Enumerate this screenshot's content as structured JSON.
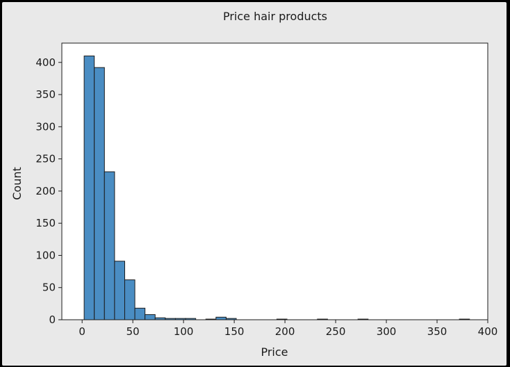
{
  "chart_data": {
    "type": "bar",
    "title": "Price hair products",
    "xlabel": "Price",
    "ylabel": "Count",
    "xlim": [
      -20,
      400
    ],
    "ylim": [
      0,
      430
    ],
    "xticks": [
      0,
      50,
      100,
      150,
      200,
      250,
      300,
      350,
      400
    ],
    "yticks": [
      0,
      50,
      100,
      150,
      200,
      250,
      300,
      350,
      400
    ],
    "bin_width": 10,
    "bins": [
      {
        "start": 2,
        "count": 410
      },
      {
        "start": 12,
        "count": 392
      },
      {
        "start": 22,
        "count": 230
      },
      {
        "start": 32,
        "count": 91
      },
      {
        "start": 42,
        "count": 62
      },
      {
        "start": 52,
        "count": 18
      },
      {
        "start": 62,
        "count": 8
      },
      {
        "start": 72,
        "count": 3
      },
      {
        "start": 82,
        "count": 2
      },
      {
        "start": 92,
        "count": 2
      },
      {
        "start": 102,
        "count": 2
      },
      {
        "start": 122,
        "count": 1
      },
      {
        "start": 132,
        "count": 4
      },
      {
        "start": 142,
        "count": 2
      },
      {
        "start": 192,
        "count": 1
      },
      {
        "start": 232,
        "count": 1
      },
      {
        "start": 272,
        "count": 1
      },
      {
        "start": 372,
        "count": 1
      }
    ],
    "bar_color": "#4a8dc3",
    "edge_color": "#1c1c1c",
    "grid": false,
    "legend": "none"
  }
}
